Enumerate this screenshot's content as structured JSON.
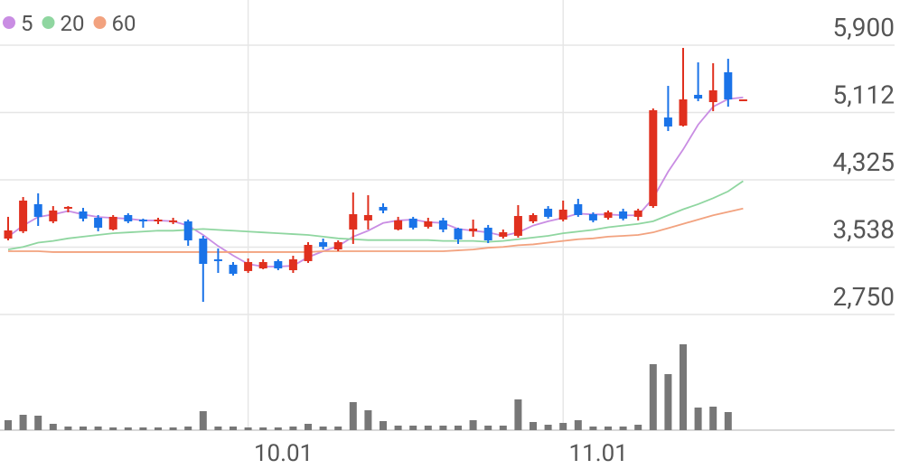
{
  "chart_data": {
    "type": "candlestick",
    "categories": [
      null,
      null,
      null,
      null,
      null,
      null,
      null,
      null,
      null,
      null,
      null,
      null,
      null,
      null,
      null,
      null,
      "10.01",
      null,
      null,
      null,
      null,
      null,
      null,
      null,
      null,
      null,
      null,
      null,
      null,
      null,
      null,
      null,
      null,
      null,
      null,
      null,
      null,
      "11.01",
      null,
      null,
      null,
      null,
      null,
      null,
      null,
      null,
      null,
      null,
      null,
      null
    ],
    "open": [
      3638,
      3723,
      4040,
      3839,
      3987,
      3955,
      3881,
      3744,
      3913,
      3860,
      3839,
      3839,
      3839,
      3638,
      3395,
      3331,
      3258,
      3289,
      3374,
      3268,
      3374,
      3596,
      3511,
      3744,
      3850,
      4008,
      3744,
      3871,
      3776,
      3850,
      3755,
      3723,
      3765,
      3659,
      3670,
      3839,
      3987,
      3860,
      4040,
      3923,
      3881,
      3955,
      3892,
      4018,
      5054,
      4959,
      5319,
      5234,
      5583,
      5266
    ],
    "high": [
      3892,
      4124,
      4167,
      4018,
      4018,
      3997,
      3913,
      3913,
      3934,
      3871,
      3881,
      3881,
      3860,
      3670,
      3522,
      3363,
      3405,
      3395,
      3395,
      3437,
      3596,
      3638,
      3617,
      4177,
      4145,
      4050,
      3892,
      3892,
      3881,
      3881,
      3765,
      3860,
      3797,
      3744,
      4029,
      3934,
      4018,
      4082,
      4103,
      3945,
      3966,
      3987,
      3987,
      5160,
      5424,
      5868,
      5699,
      5689,
      5741,
      5266
    ],
    "low": [
      3617,
      3702,
      3786,
      3818,
      3945,
      3839,
      3723,
      3733,
      3818,
      3765,
      3807,
      3807,
      3553,
      2898,
      3236,
      3205,
      3236,
      3279,
      3268,
      3236,
      3353,
      3511,
      3490,
      3575,
      3744,
      3934,
      3733,
      3744,
      3755,
      3712,
      3575,
      3659,
      3585,
      3638,
      3649,
      3818,
      3871,
      3839,
      3892,
      3828,
      3860,
      3850,
      3850,
      3997,
      4896,
      4949,
      5245,
      5128,
      5181,
      5266
    ],
    "close": [
      3733,
      4082,
      3892,
      3966,
      4008,
      3871,
      3765,
      3892,
      3839,
      3839,
      3860,
      3850,
      3617,
      3342,
      3374,
      3226,
      3363,
      3363,
      3289,
      3395,
      3564,
      3543,
      3596,
      3923,
      3913,
      3966,
      3850,
      3765,
      3839,
      3744,
      3628,
      3755,
      3617,
      3712,
      3902,
      3913,
      3892,
      3976,
      3913,
      3850,
      3945,
      3871,
      3966,
      5139,
      4949,
      5266,
      5276,
      5372,
      5266,
      5266
    ],
    "up_color": "#e0301e",
    "down_color": "#1a73e8",
    "volume": [
      11,
      17,
      16,
      7,
      4,
      4,
      4,
      3,
      3,
      3,
      3,
      3,
      4,
      21,
      4,
      4,
      3,
      3,
      3,
      4,
      7,
      4,
      4,
      31,
      22,
      10,
      5,
      5,
      5,
      5,
      5,
      11,
      5,
      5,
      34,
      9,
      6,
      8,
      11,
      4,
      4,
      4,
      6,
      73,
      62,
      95,
      25,
      26,
      20,
      null
    ],
    "volume_color": "#777777",
    "series": [
      {
        "name": "5",
        "color": "#c98de3",
        "values": [
          3660,
          3790,
          3890,
          3920,
          3960,
          3920,
          3890,
          3880,
          3870,
          3850,
          3850,
          3840,
          3790,
          3680,
          3550,
          3440,
          3340,
          3310,
          3310,
          3320,
          3420,
          3490,
          3550,
          3660,
          3730,
          3820,
          3850,
          3860,
          3830,
          3820,
          3750,
          3730,
          3710,
          3670,
          3710,
          3790,
          3840,
          3880,
          3930,
          3920,
          3920,
          3910,
          3910,
          4110,
          4420,
          4680,
          4970,
          5180,
          5270,
          5290
        ]
      },
      {
        "name": "20",
        "color": "#8fd6a0",
        "values": [
          3510,
          3540,
          3590,
          3610,
          3640,
          3660,
          3680,
          3700,
          3710,
          3720,
          3730,
          3730,
          3740,
          3750,
          3740,
          3730,
          3720,
          3710,
          3700,
          3690,
          3680,
          3660,
          3640,
          3630,
          3620,
          3620,
          3620,
          3620,
          3620,
          3610,
          3610,
          3610,
          3600,
          3610,
          3630,
          3650,
          3670,
          3700,
          3720,
          3740,
          3770,
          3790,
          3810,
          3840,
          3910,
          3980,
          4040,
          4110,
          4190,
          4310
        ]
      },
      {
        "name": "60",
        "color": "#f2a27f",
        "values": [
          3490,
          3490,
          3490,
          3480,
          3480,
          3480,
          3480,
          3480,
          3480,
          3480,
          3480,
          3480,
          3480,
          3480,
          3480,
          3480,
          3480,
          3480,
          3480,
          3480,
          3480,
          3490,
          3490,
          3490,
          3490,
          3490,
          3490,
          3490,
          3490,
          3490,
          3500,
          3510,
          3530,
          3540,
          3560,
          3570,
          3590,
          3610,
          3630,
          3640,
          3660,
          3670,
          3680,
          3710,
          3760,
          3810,
          3860,
          3910,
          3950,
          3990
        ]
      }
    ],
    "ylim": [
      2750,
      5900
    ],
    "yticks": [
      {
        "value": 2750,
        "label": "2,750"
      },
      {
        "value": 3538,
        "label": "3,538"
      },
      {
        "value": 4325,
        "label": "4,325"
      },
      {
        "value": 5112,
        "label": "5,112"
      },
      {
        "value": 5900,
        "label": "5,900"
      }
    ],
    "grid": true
  }
}
